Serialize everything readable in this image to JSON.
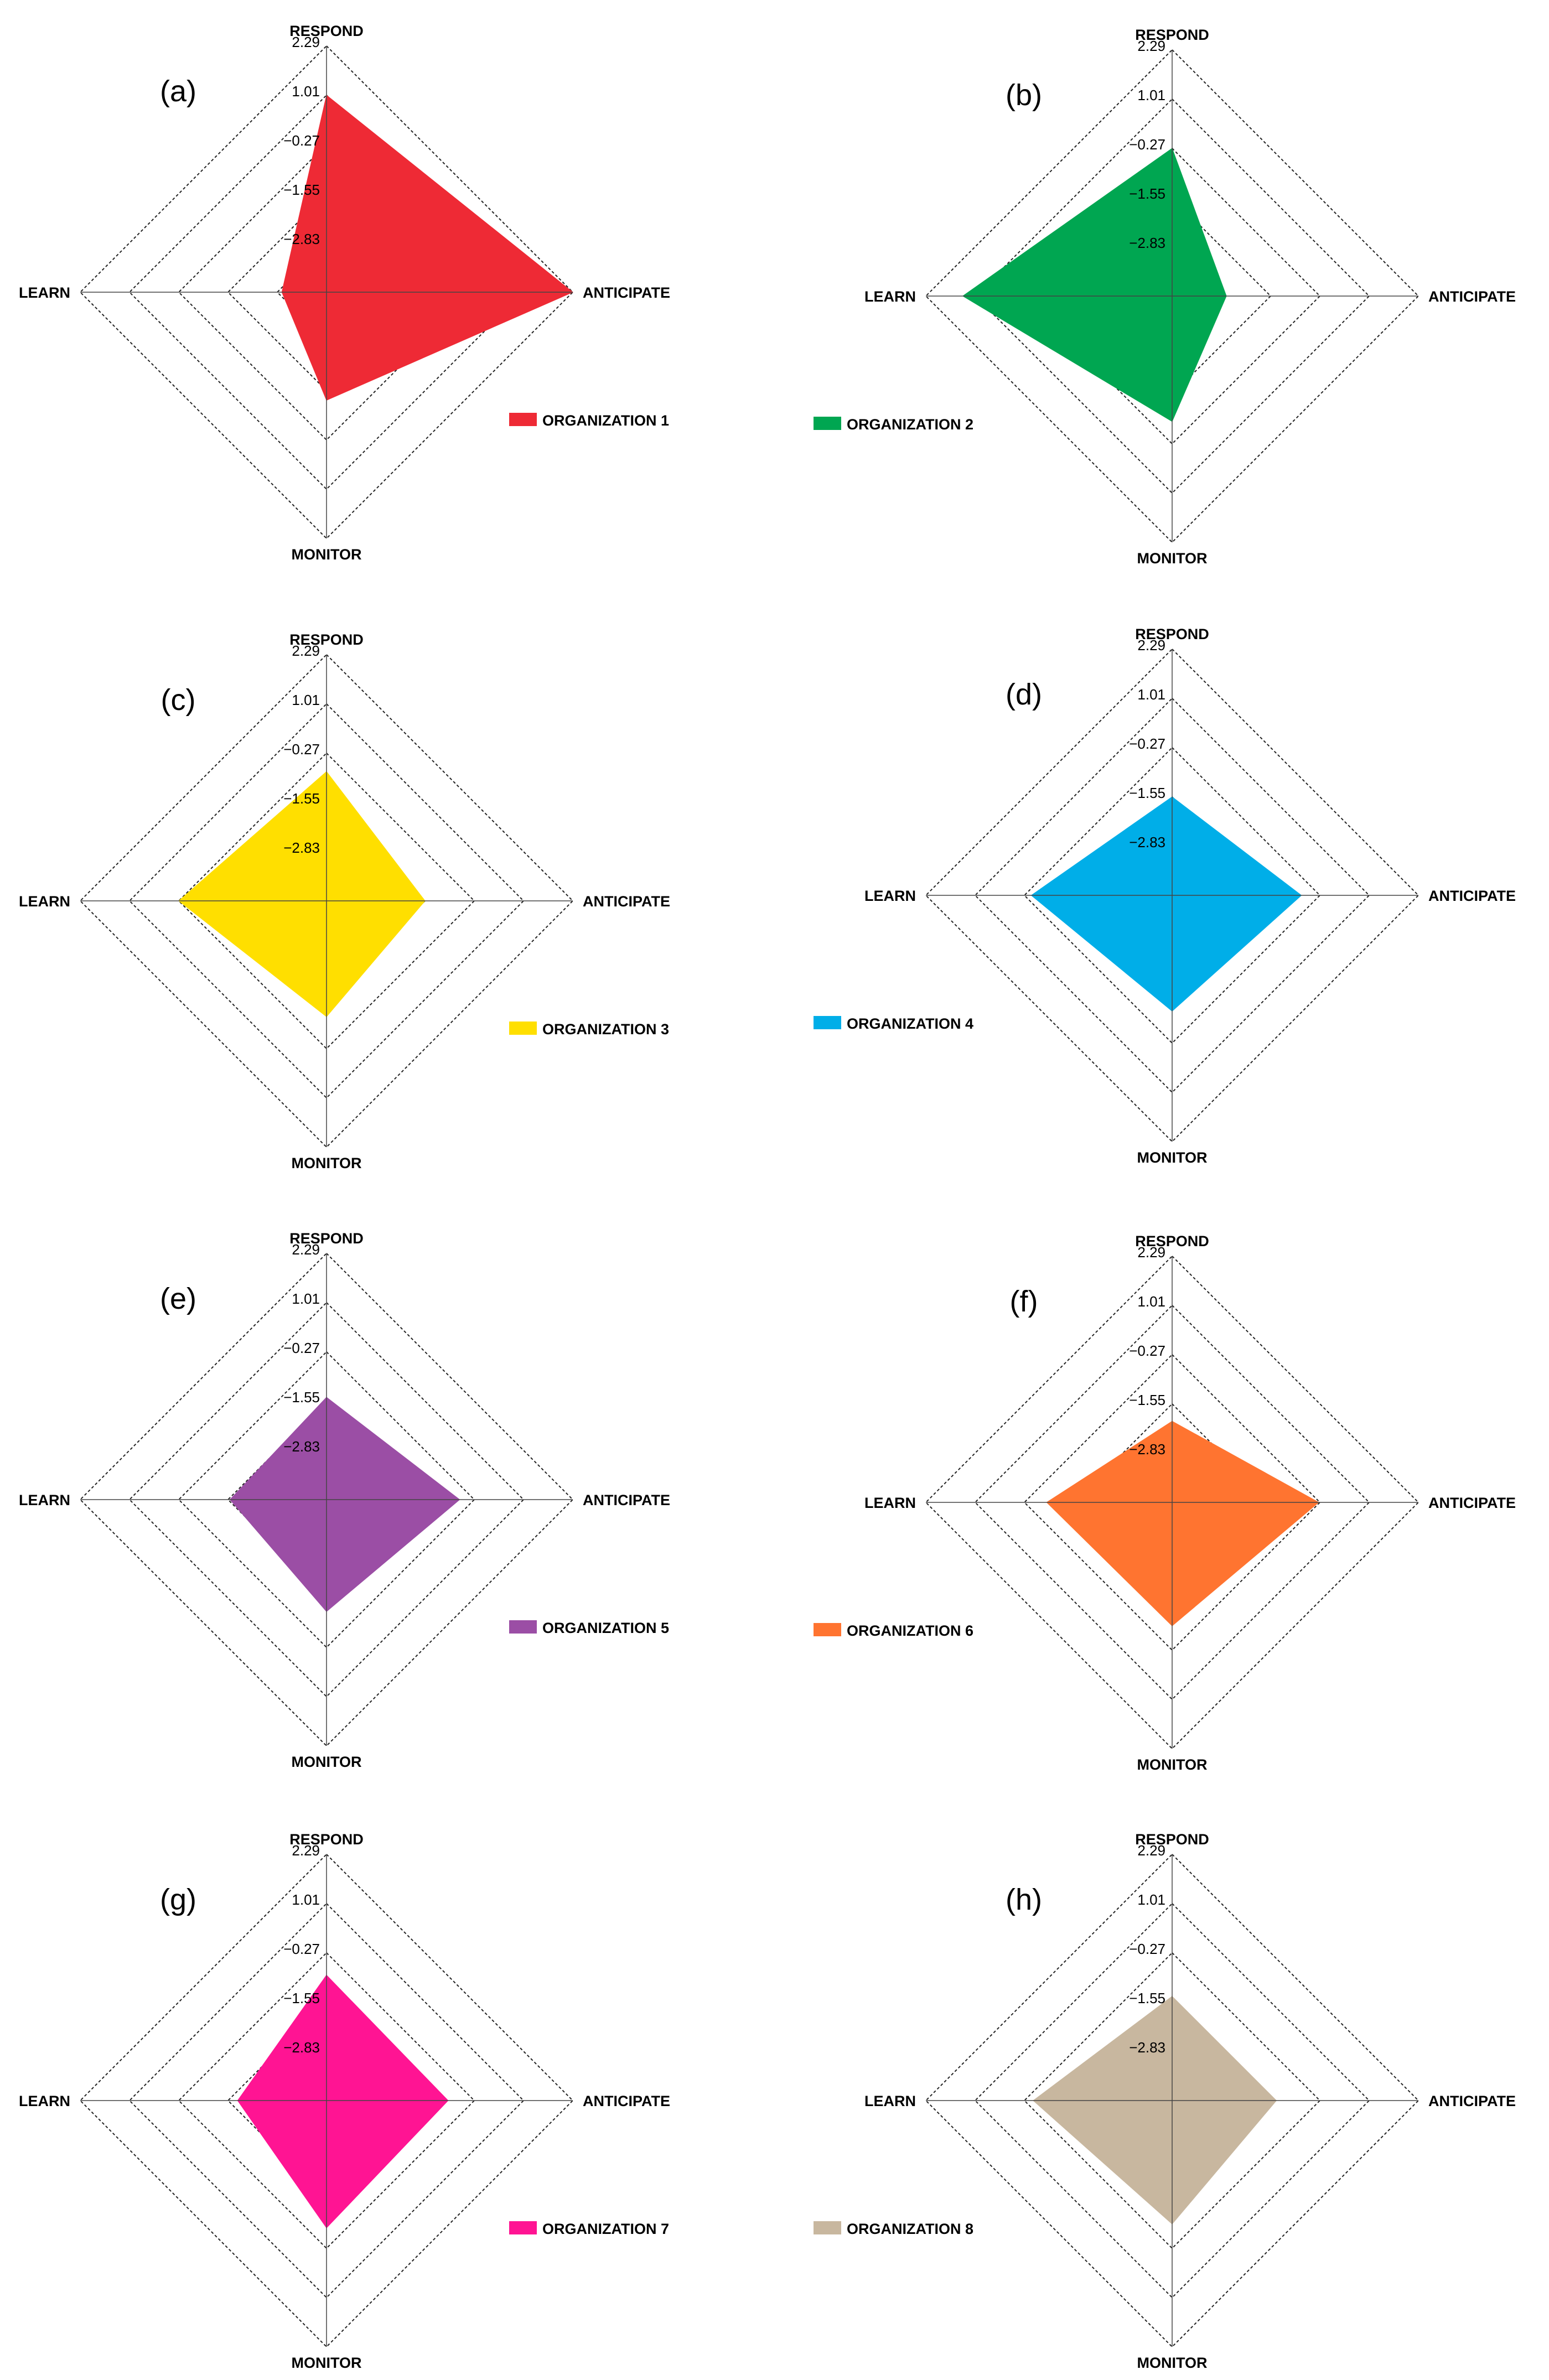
{
  "chart_data": [
    {
      "type": "radar",
      "panel": "(a)",
      "axes": [
        "RESPOND",
        "ANTICIPATE",
        "MONITOR",
        "LEARN"
      ],
      "ticks": [
        2.29,
        1.01,
        -0.27,
        -1.55,
        -2.83
      ],
      "range": [
        -4.11,
        2.29
      ],
      "series": [
        {
          "name": "ORGANIZATION 1",
          "color": "#ee2a35",
          "values": [
            1.01,
            2.29,
            -1.3,
            -2.95
          ]
        }
      ]
    },
    {
      "type": "radar",
      "panel": "(b)",
      "axes": [
        "RESPOND",
        "ANTICIPATE",
        "MONITOR",
        "LEARN"
      ],
      "ticks": [
        2.29,
        1.01,
        -0.27,
        -1.55,
        -2.83
      ],
      "range": [
        -4.11,
        2.29
      ],
      "series": [
        {
          "name": "ORGANIZATION 2",
          "color": "#00a651",
          "values": [
            -0.27,
            -2.7,
            -0.85,
            1.33
          ]
        }
      ]
    },
    {
      "type": "radar",
      "panel": "(c)",
      "axes": [
        "RESPOND",
        "ANTICIPATE",
        "MONITOR",
        "LEARN"
      ],
      "ticks": [
        2.29,
        1.01,
        -0.27,
        -1.55,
        -2.83
      ],
      "range": [
        -4.11,
        2.29
      ],
      "series": [
        {
          "name": "ORGANIZATION 3",
          "color": "#ffdf00",
          "values": [
            -0.75,
            -1.55,
            -1.1,
            -0.27
          ]
        }
      ]
    },
    {
      "type": "radar",
      "panel": "(d)",
      "axes": [
        "RESPOND",
        "ANTICIPATE",
        "MONITOR",
        "LEARN"
      ],
      "ticks": [
        2.29,
        1.01,
        -0.27,
        -1.55,
        -2.83
      ],
      "range": [
        -4.11,
        2.29
      ],
      "series": [
        {
          "name": "ORGANIZATION 4",
          "color": "#00aee8",
          "values": [
            -1.55,
            -0.75,
            -1.1,
            -0.45
          ]
        }
      ]
    },
    {
      "type": "radar",
      "panel": "(e)",
      "axes": [
        "RESPOND",
        "ANTICIPATE",
        "MONITOR",
        "LEARN"
      ],
      "ticks": [
        2.29,
        1.01,
        -0.27,
        -1.55,
        -2.83
      ],
      "range": [
        -4.11,
        2.29
      ],
      "series": [
        {
          "name": "ORGANIZATION 5",
          "color": "#9b4ea5",
          "values": [
            -1.45,
            -0.65,
            -1.2,
            -1.6
          ]
        }
      ]
    },
    {
      "type": "radar",
      "panel": "(f)",
      "axes": [
        "RESPOND",
        "ANTICIPATE",
        "MONITOR",
        "LEARN"
      ],
      "ticks": [
        2.29,
        1.01,
        -0.27,
        -1.55,
        -2.83
      ],
      "range": [
        -4.11,
        2.29
      ],
      "series": [
        {
          "name": "ORGANIZATION 6",
          "color": "#ff7430",
          "values": [
            -2.0,
            -0.3,
            -0.9,
            -0.85
          ]
        }
      ]
    },
    {
      "type": "radar",
      "panel": "(g)",
      "axes": [
        "RESPOND",
        "ANTICIPATE",
        "MONITOR",
        "LEARN"
      ],
      "ticks": [
        2.29,
        1.01,
        -0.27,
        -1.55,
        -2.83
      ],
      "range": [
        -4.11,
        2.29
      ],
      "series": [
        {
          "name": "ORGANIZATION 7",
          "color": "#ff1493",
          "values": [
            -0.85,
            -0.95,
            -0.8,
            -1.8
          ]
        }
      ]
    },
    {
      "type": "radar",
      "panel": "(h)",
      "axes": [
        "RESPOND",
        "ANTICIPATE",
        "MONITOR",
        "LEARN"
      ],
      "ticks": [
        2.29,
        1.01,
        -0.27,
        -1.55,
        -2.83
      ],
      "range": [
        -4.11,
        2.29
      ],
      "series": [
        {
          "name": "ORGANIZATION 8",
          "color": "#c8b79f",
          "values": [
            -1.4,
            -1.4,
            -0.9,
            -0.5
          ]
        }
      ]
    }
  ]
}
